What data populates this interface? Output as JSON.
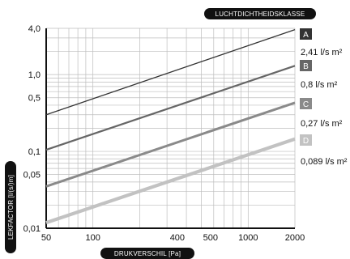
{
  "chart_data": {
    "type": "line",
    "scale": "log-log",
    "title": "LUCHTDICHTHEIDSKLASSE",
    "xlabel": "DRUKVERSCHIL [Pa]",
    "ylabel": "LEKFACTOR [l/(s/)m]",
    "xlim": [
      50,
      2000
    ],
    "ylim": [
      0.01,
      4.0
    ],
    "x_ticks": [
      {
        "value": 50,
        "label": "50"
      },
      {
        "value": 100,
        "label": "100"
      },
      {
        "value": 400,
        "label": "400"
      },
      {
        "value": 500,
        "label": "500"
      },
      {
        "value": 1000,
        "label": "1000"
      },
      {
        "value": 2000,
        "label": "2000"
      }
    ],
    "y_ticks": [
      {
        "value": 4.0,
        "label": "4,0"
      },
      {
        "value": 1.0,
        "label": "1,0"
      },
      {
        "value": 0.5,
        "label": "0,5"
      },
      {
        "value": 0.1,
        "label": "0,1"
      },
      {
        "value": 0.05,
        "label": "0,05"
      },
      {
        "value": 0.01,
        "label": "0,01"
      }
    ],
    "grid": true,
    "series": [
      {
        "name": "A",
        "value_label": "2,41 l/s m²",
        "color": "#333333",
        "width": 1.3,
        "x": [
          50,
          2000
        ],
        "y": [
          0.3,
          3.85
        ]
      },
      {
        "name": "B",
        "value_label": "0,8 l/s m²",
        "color": "#666666",
        "width": 2.2,
        "x": [
          50,
          2000
        ],
        "y": [
          0.105,
          1.3
        ]
      },
      {
        "name": "C",
        "value_label": "0,27 l/s m²",
        "color": "#8a8a8a",
        "width": 3.0,
        "x": [
          50,
          2000
        ],
        "y": [
          0.035,
          0.43
        ]
      },
      {
        "name": "D",
        "value_label": "0,089 l/s m²",
        "color": "#c2c2c2",
        "width": 4.2,
        "x": [
          50,
          2000
        ],
        "y": [
          0.0118,
          0.145
        ]
      }
    ]
  }
}
